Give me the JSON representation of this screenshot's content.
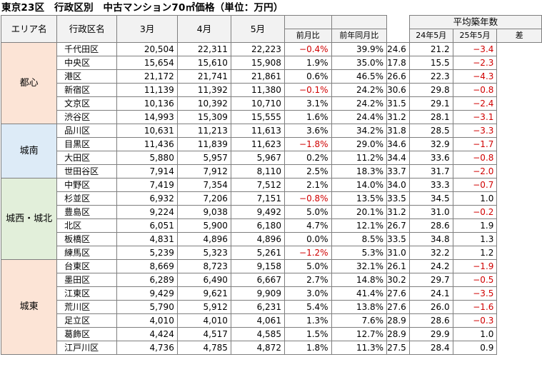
{
  "title": "東京23区　行政区別　中古マンション70㎡価格（単位：万円）",
  "headers": {
    "area": "エリア名",
    "ward": "行政区名",
    "m3": "3月",
    "m4": "4月",
    "m5": "5月",
    "mom": "前月比",
    "yoy": "前年同月比",
    "age_group": "平均築年数",
    "age24": "24年5月",
    "age25": "25年5月",
    "diff": "差"
  },
  "colors": {
    "都心": "#fce4d6",
    "城南": "#ddebf7",
    "城西・城北": "#e2efda",
    "城東": "#fce4d6",
    "negative": "#d00000"
  },
  "areas": [
    {
      "name": "都心",
      "rows": [
        [
          "千代田区",
          "20,504",
          "22,311",
          "22,223",
          "−0.4%",
          "39.9%",
          "24.6",
          "21.2",
          "−3.4"
        ],
        [
          "中央区",
          "15,654",
          "15,610",
          "15,908",
          "1.9%",
          "35.0%",
          "17.8",
          "15.5",
          "−2.3"
        ],
        [
          "港区",
          "21,172",
          "21,741",
          "21,861",
          "0.6%",
          "46.5%",
          "26.6",
          "22.3",
          "−4.3"
        ],
        [
          "新宿区",
          "11,139",
          "11,392",
          "11,380",
          "−0.1%",
          "24.2%",
          "30.6",
          "29.8",
          "−0.8"
        ],
        [
          "文京区",
          "10,136",
          "10,392",
          "10,710",
          "3.1%",
          "24.2%",
          "31.5",
          "29.1",
          "−2.4"
        ],
        [
          "渋谷区",
          "14,993",
          "15,309",
          "15,555",
          "1.6%",
          "24.4%",
          "31.2",
          "28.1",
          "−3.1"
        ]
      ]
    },
    {
      "name": "城南",
      "rows": [
        [
          "品川区",
          "10,631",
          "11,213",
          "11,613",
          "3.6%",
          "34.2%",
          "31.8",
          "28.5",
          "−3.3"
        ],
        [
          "目黒区",
          "11,436",
          "11,839",
          "11,623",
          "−1.8%",
          "29.0%",
          "34.6",
          "32.9",
          "−1.7"
        ],
        [
          "大田区",
          "5,880",
          "5,957",
          "5,967",
          "0.2%",
          "11.2%",
          "34.4",
          "33.6",
          "−0.8"
        ],
        [
          "世田谷区",
          "7,914",
          "7,912",
          "8,110",
          "2.5%",
          "18.3%",
          "33.7",
          "31.7",
          "−2.0"
        ]
      ]
    },
    {
      "name": "城西・城北",
      "rows": [
        [
          "中野区",
          "7,419",
          "7,354",
          "7,512",
          "2.1%",
          "14.0%",
          "34.0",
          "33.3",
          "−0.7"
        ],
        [
          "杉並区",
          "6,932",
          "7,206",
          "7,151",
          "−0.8%",
          "13.5%",
          "33.5",
          "34.5",
          "1.0"
        ],
        [
          "豊島区",
          "9,224",
          "9,038",
          "9,492",
          "5.0%",
          "20.1%",
          "31.2",
          "31.0",
          "−0.2"
        ],
        [
          "北区",
          "6,051",
          "5,900",
          "6,180",
          "4.7%",
          "12.1%",
          "26.7",
          "28.6",
          "1.9"
        ],
        [
          "板橋区",
          "4,831",
          "4,896",
          "4,896",
          "0.0%",
          "8.5%",
          "33.5",
          "34.8",
          "1.3"
        ],
        [
          "練馬区",
          "5,239",
          "5,323",
          "5,261",
          "−1.2%",
          "5.3%",
          "31.0",
          "32.2",
          "1.2"
        ]
      ]
    },
    {
      "name": "城東",
      "rows": [
        [
          "台東区",
          "8,669",
          "8,723",
          "9,158",
          "5.0%",
          "32.1%",
          "26.1",
          "24.2",
          "−1.9"
        ],
        [
          "墨田区",
          "6,289",
          "6,490",
          "6,667",
          "2.7%",
          "14.8%",
          "30.2",
          "29.7",
          "−0.5"
        ],
        [
          "江東区",
          "9,429",
          "9,621",
          "9,909",
          "3.0%",
          "41.4%",
          "27.6",
          "24.1",
          "−3.5"
        ],
        [
          "荒川区",
          "5,790",
          "5,912",
          "6,231",
          "5.4%",
          "13.8%",
          "27.6",
          "26.0",
          "−1.6"
        ],
        [
          "足立区",
          "4,010",
          "4,010",
          "4,061",
          "1.3%",
          "7.6%",
          "28.9",
          "28.6",
          "−0.3"
        ],
        [
          "葛飾区",
          "4,424",
          "4,517",
          "4,585",
          "1.5%",
          "12.7%",
          "28.9",
          "29.9",
          "1.0"
        ],
        [
          "江戸川区",
          "4,736",
          "4,785",
          "4,872",
          "1.8%",
          "11.3%",
          "27.5",
          "28.4",
          "0.9"
        ]
      ]
    }
  ]
}
